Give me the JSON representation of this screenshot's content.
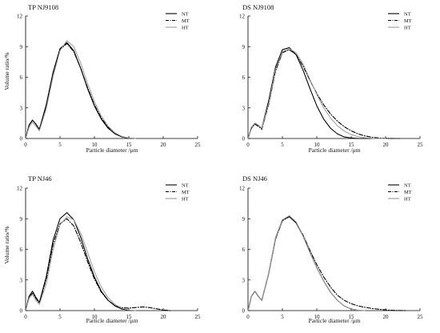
{
  "chart_data": [
    {
      "type": "line",
      "title": "TP NJ9108",
      "xlabel": "Particle diameter /μm",
      "ylabel": "Volume ratio/%",
      "xlim": [
        0,
        25
      ],
      "ylim": [
        0,
        12
      ],
      "xticks": [
        "0",
        "5",
        "10",
        "15",
        "20",
        "25"
      ],
      "yticks": [
        "0",
        "3",
        "6",
        "9",
        "12"
      ],
      "legend_position": "top-right",
      "series": [
        {
          "name": "NT",
          "style": "solid",
          "color": "#000000",
          "x": [
            0,
            0.5,
            1,
            1.5,
            2,
            3,
            4,
            5,
            6,
            7,
            8,
            9,
            10,
            11,
            12,
            13,
            14,
            15,
            16
          ],
          "y": [
            0,
            1.3,
            1.8,
            1.4,
            0.9,
            3.3,
            6.5,
            8.8,
            9.4,
            8.6,
            6.9,
            4.9,
            3.2,
            1.9,
            1.0,
            0.45,
            0.15,
            0.03,
            0
          ]
        },
        {
          "name": "MT",
          "style": "dashdot",
          "color": "#000000",
          "x": [
            0,
            0.5,
            1,
            1.5,
            2,
            3,
            4,
            5,
            6,
            7,
            8,
            9,
            10,
            11,
            12,
            13,
            14,
            15,
            16
          ],
          "y": [
            0,
            1.3,
            1.8,
            1.4,
            0.9,
            3.2,
            6.4,
            8.7,
            9.3,
            8.5,
            6.9,
            5.0,
            3.3,
            2.0,
            1.1,
            0.5,
            0.18,
            0.05,
            0
          ]
        },
        {
          "name": "HT",
          "style": "solid",
          "color": "#9a9a9a",
          "x": [
            0,
            0.5,
            1,
            1.5,
            2,
            3,
            4,
            5,
            6,
            7,
            8,
            9,
            10,
            11,
            12,
            13,
            14,
            15,
            16
          ],
          "y": [
            0,
            1.1,
            1.6,
            1.2,
            0.75,
            2.9,
            6.1,
            8.6,
            9.6,
            9.0,
            7.4,
            5.4,
            3.6,
            2.2,
            1.2,
            0.55,
            0.2,
            0.05,
            0
          ]
        }
      ]
    },
    {
      "type": "line",
      "title": "DS NJ9108",
      "xlabel": "Particle diameter /μm",
      "ylabel": "",
      "xlim": [
        0,
        25
      ],
      "ylim": [
        0,
        12
      ],
      "xticks": [
        "0",
        "5",
        "10",
        "15",
        "20",
        "25"
      ],
      "yticks": [
        "0",
        "3",
        "6",
        "9",
        "12"
      ],
      "legend_position": "top-right",
      "series": [
        {
          "name": "NT",
          "style": "solid",
          "color": "#000000",
          "x": [
            0,
            0.5,
            1,
            1.5,
            2,
            3,
            4,
            5,
            6,
            7,
            8,
            9,
            10,
            11,
            12,
            13,
            14,
            15,
            16,
            18
          ],
          "y": [
            0,
            1.1,
            1.5,
            1.3,
            1.0,
            3.7,
            7.0,
            8.7,
            8.9,
            8.2,
            6.7,
            4.9,
            3.2,
            1.9,
            1.0,
            0.45,
            0.15,
            0.05,
            0,
            0
          ]
        },
        {
          "name": "MT",
          "style": "dashdot",
          "color": "#000000",
          "x": [
            0,
            0.5,
            1,
            1.5,
            2,
            3,
            4,
            5,
            6,
            7,
            8,
            9,
            10,
            11,
            12,
            13,
            14,
            15,
            16,
            17,
            18,
            19,
            20,
            21,
            22
          ],
          "y": [
            0,
            1.0,
            1.4,
            1.2,
            0.9,
            3.3,
            6.6,
            8.4,
            8.7,
            8.2,
            7.1,
            5.7,
            4.4,
            3.3,
            2.4,
            1.7,
            1.15,
            0.75,
            0.45,
            0.25,
            0.12,
            0.05,
            0.02,
            0,
            0
          ]
        },
        {
          "name": "HT",
          "style": "solid",
          "color": "#9a9a9a",
          "x": [
            0,
            0.5,
            1,
            1.5,
            2,
            3,
            4,
            5,
            6,
            7,
            8,
            9,
            10,
            11,
            12,
            13,
            14,
            15,
            16,
            17,
            18,
            19,
            20
          ],
          "y": [
            0,
            1.1,
            1.5,
            1.3,
            1.0,
            3.4,
            6.8,
            8.5,
            8.8,
            8.4,
            7.3,
            5.8,
            4.3,
            3.0,
            2.0,
            1.25,
            0.72,
            0.38,
            0.18,
            0.07,
            0.02,
            0,
            0
          ]
        }
      ]
    },
    {
      "type": "line",
      "title": "TP NJ46",
      "xlabel": "Particle diameter /μm",
      "ylabel": "Volume ratio/%",
      "xlim": [
        0,
        25
      ],
      "ylim": [
        0,
        12
      ],
      "xticks": [
        "0",
        "5",
        "10",
        "15",
        "20",
        "25"
      ],
      "yticks": [
        "0",
        "3",
        "6",
        "9",
        "12"
      ],
      "legend_position": "top-right",
      "series": [
        {
          "name": "NT",
          "style": "solid",
          "color": "#000000",
          "x": [
            0,
            0.5,
            1,
            1.5,
            2,
            3,
            4,
            5,
            6,
            7,
            8,
            9,
            10,
            11,
            12,
            13,
            14,
            15,
            16
          ],
          "y": [
            0,
            1.4,
            1.9,
            1.3,
            0.8,
            3.3,
            6.9,
            9.0,
            9.6,
            8.9,
            7.2,
            5.1,
            3.3,
            1.9,
            1.0,
            0.45,
            0.15,
            0.04,
            0
          ]
        },
        {
          "name": "MT",
          "style": "dashdot",
          "color": "#000000",
          "x": [
            0,
            0.5,
            1,
            1.5,
            2,
            3,
            4,
            5,
            6,
            7,
            8,
            9,
            10,
            11,
            12,
            13,
            14,
            15,
            16,
            17,
            18,
            19,
            20,
            21
          ],
          "y": [
            0,
            1.3,
            1.7,
            1.2,
            0.75,
            3.1,
            6.5,
            8.5,
            9.0,
            8.3,
            6.7,
            4.8,
            3.1,
            1.8,
            1.0,
            0.5,
            0.28,
            0.24,
            0.3,
            0.36,
            0.3,
            0.18,
            0.06,
            0
          ]
        },
        {
          "name": "HT",
          "style": "solid",
          "color": "#9a9a9a",
          "x": [
            0,
            0.5,
            1,
            1.5,
            2,
            3,
            4,
            5,
            6,
            7,
            8,
            9,
            10,
            11,
            12,
            13,
            14,
            15,
            16
          ],
          "y": [
            0,
            1.2,
            1.6,
            1.0,
            0.6,
            2.6,
            6.0,
            8.4,
            9.2,
            8.9,
            7.6,
            5.7,
            3.8,
            2.3,
            1.25,
            0.6,
            0.22,
            0.06,
            0
          ]
        }
      ]
    },
    {
      "type": "line",
      "title": "DS NJ46",
      "xlabel": "Particle diameter /μm",
      "ylabel": "",
      "xlim": [
        0,
        25
      ],
      "ylim": [
        0,
        12
      ],
      "xticks": [
        "0",
        "5",
        "10",
        "15",
        "20",
        "25"
      ],
      "yticks": [
        "0",
        "3",
        "6",
        "9",
        "12"
      ],
      "legend_position": "top-right",
      "series": [
        {
          "name": "NT",
          "style": "solid",
          "color": "#000000",
          "x": [
            0,
            0.5,
            1,
            1.5,
            2,
            3,
            4,
            5,
            6,
            7,
            8,
            9,
            10,
            11,
            12,
            13,
            14,
            15,
            16,
            17
          ],
          "y": [
            0,
            1.4,
            1.9,
            1.4,
            1.0,
            3.6,
            7.1,
            8.9,
            9.2,
            8.6,
            7.3,
            5.7,
            4.2,
            2.9,
            1.8,
            1.0,
            0.45,
            0.15,
            0.03,
            0
          ]
        },
        {
          "name": "MT",
          "style": "dashdot",
          "color": "#000000",
          "x": [
            0,
            0.5,
            1,
            1.5,
            2,
            3,
            4,
            5,
            6,
            7,
            8,
            9,
            10,
            11,
            12,
            13,
            14,
            15,
            16,
            17,
            18,
            19,
            20,
            21,
            22,
            23
          ],
          "y": [
            0,
            1.4,
            1.9,
            1.4,
            1.0,
            3.6,
            7.0,
            8.8,
            9.2,
            8.6,
            7.4,
            5.9,
            4.5,
            3.3,
            2.3,
            1.5,
            1.0,
            0.68,
            0.46,
            0.32,
            0.21,
            0.13,
            0.07,
            0.03,
            0.01,
            0
          ]
        },
        {
          "name": "HT",
          "style": "solid",
          "color": "#9a9a9a",
          "x": [
            0,
            0.5,
            1,
            1.5,
            2,
            3,
            4,
            5,
            6,
            7,
            8,
            9,
            10,
            11,
            12,
            13,
            14,
            15,
            16,
            17
          ],
          "y": [
            0,
            1.4,
            1.9,
            1.4,
            1.0,
            3.6,
            7.1,
            8.9,
            9.3,
            8.7,
            7.3,
            5.7,
            4.2,
            2.9,
            1.8,
            1.0,
            0.45,
            0.15,
            0.03,
            0
          ]
        }
      ]
    }
  ]
}
